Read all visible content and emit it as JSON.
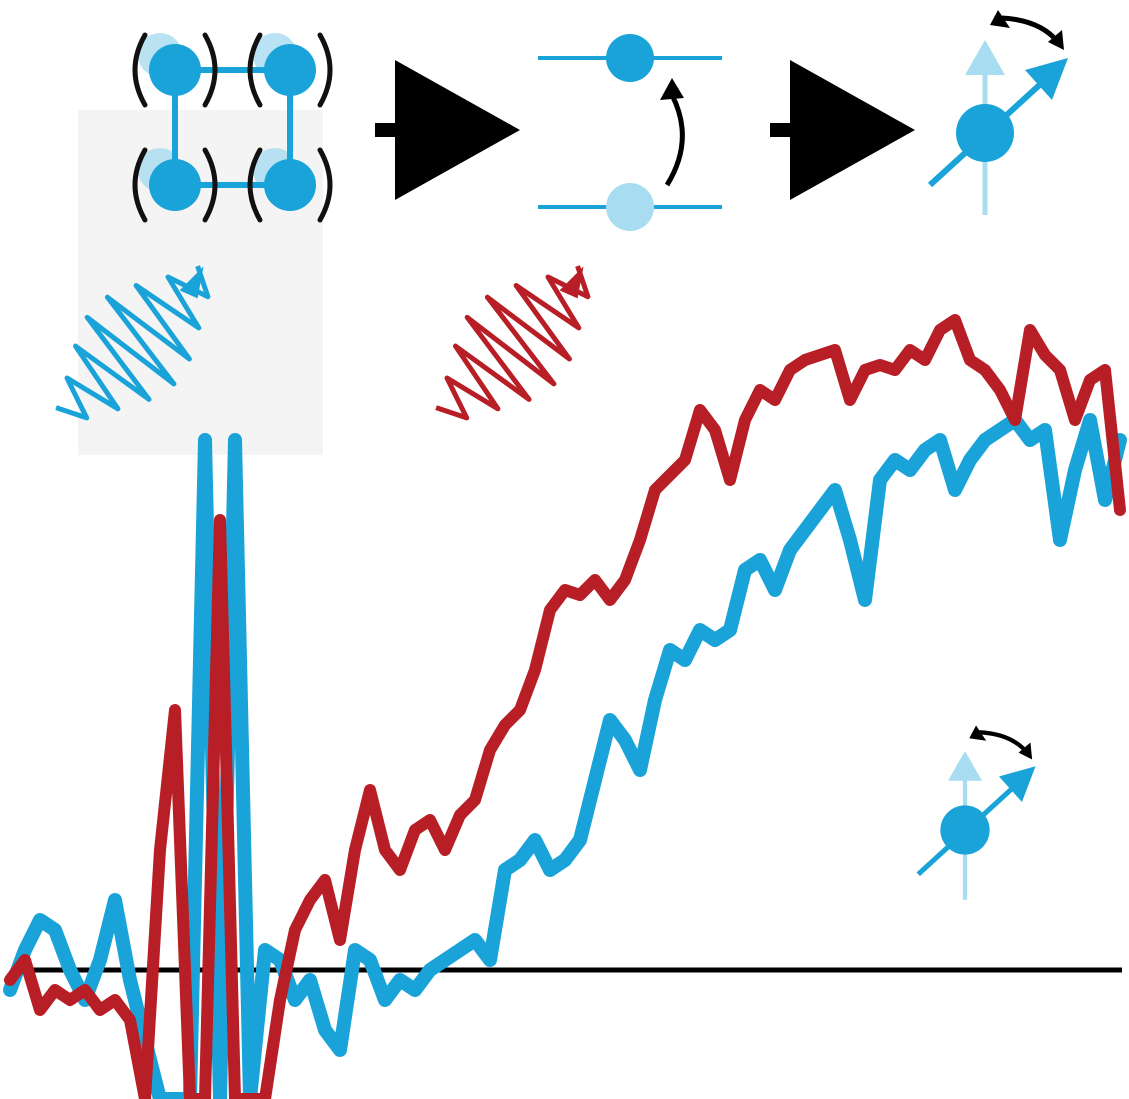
{
  "chart_data": {
    "type": "line",
    "x": [
      0,
      1,
      2,
      3,
      4,
      5,
      6,
      7,
      8,
      9,
      10,
      11,
      12,
      13,
      14,
      15,
      16,
      17,
      18,
      19,
      20,
      21,
      22,
      23,
      24,
      25,
      26,
      27,
      28,
      29,
      30,
      31,
      32,
      33,
      34,
      35,
      36,
      37,
      38,
      39,
      40,
      41,
      42,
      43,
      44,
      45,
      46,
      47,
      48,
      49,
      50,
      51,
      52,
      53,
      54,
      55,
      56,
      57,
      58,
      59,
      60,
      61,
      62,
      63,
      64,
      65,
      66,
      67,
      68,
      69,
      70,
      71,
      72,
      73,
      74
    ],
    "xlim": [
      -0.67,
      74.6
    ],
    "ylim": [
      -129,
      970
    ],
    "series": [
      {
        "color": "#1aa3d9",
        "values": [
          -20,
          20,
          50,
          40,
          0,
          -30,
          10,
          70,
          -10,
          -70,
          -129,
          -129,
          -129,
          530,
          -129,
          530,
          -129,
          20,
          10,
          -30,
          -10,
          -60,
          -80,
          20,
          10,
          -30,
          -10,
          -20,
          0,
          10,
          20,
          30,
          10,
          100,
          110,
          130,
          100,
          110,
          130,
          190,
          250,
          230,
          200,
          270,
          320,
          310,
          340,
          330,
          340,
          400,
          410,
          380,
          420,
          440,
          460,
          480,
          430,
          370,
          490,
          510,
          500,
          520,
          530,
          480,
          510,
          530,
          540,
          550,
          530,
          540,
          430,
          500,
          550,
          470,
          530
        ]
      },
      {
        "color": "#b81e25",
        "values": [
          -10,
          10,
          -40,
          -20,
          -30,
          -20,
          -40,
          -30,
          -50,
          -129,
          120,
          260,
          -129,
          -129,
          450,
          -129,
          -129,
          -129,
          -30,
          40,
          70,
          90,
          30,
          120,
          180,
          120,
          100,
          140,
          150,
          120,
          155,
          170,
          220,
          245,
          260,
          300,
          360,
          380,
          375,
          390,
          370,
          390,
          430,
          480,
          495,
          510,
          560,
          540,
          490,
          550,
          580,
          570,
          600,
          610,
          615,
          620,
          570,
          600,
          605,
          600,
          620,
          610,
          640,
          650,
          610,
          600,
          580,
          550,
          640,
          615,
          600,
          550,
          590,
          600,
          460
        ]
      }
    ]
  }
}
